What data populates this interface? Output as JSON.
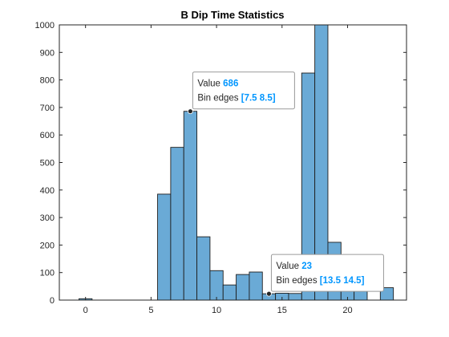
{
  "chart_data": {
    "type": "bar",
    "title": "B Dip Time Statistics",
    "xlabel": "",
    "ylabel": "",
    "xlim": [
      -2,
      24.5
    ],
    "ylim": [
      0,
      1000
    ],
    "x_ticks": [
      0,
      5,
      10,
      15,
      20
    ],
    "y_ticks": [
      0,
      100,
      200,
      300,
      400,
      500,
      600,
      700,
      800,
      900,
      1000
    ],
    "grid": false,
    "bar_color": "#6aaad6",
    "edge_color": "#1f1f1f",
    "bins": [
      {
        "left": -0.5,
        "right": 0.5,
        "value": 5
      },
      {
        "left": 5.5,
        "right": 6.5,
        "value": 385
      },
      {
        "left": 6.5,
        "right": 7.5,
        "value": 555
      },
      {
        "left": 7.5,
        "right": 8.5,
        "value": 686
      },
      {
        "left": 8.5,
        "right": 9.5,
        "value": 230
      },
      {
        "left": 9.5,
        "right": 10.5,
        "value": 107
      },
      {
        "left": 10.5,
        "right": 11.5,
        "value": 55
      },
      {
        "left": 11.5,
        "right": 12.5,
        "value": 93
      },
      {
        "left": 12.5,
        "right": 13.5,
        "value": 102
      },
      {
        "left": 13.5,
        "right": 14.5,
        "value": 23
      },
      {
        "left": 14.5,
        "right": 15.5,
        "value": 25
      },
      {
        "left": 15.5,
        "right": 16.5,
        "value": 24
      },
      {
        "left": 16.5,
        "right": 17.5,
        "value": 825
      },
      {
        "left": 17.5,
        "right": 18.5,
        "value": 1000
      },
      {
        "left": 18.5,
        "right": 19.5,
        "value": 210
      },
      {
        "left": 19.5,
        "right": 20.5,
        "value": 80
      },
      {
        "left": 20.5,
        "right": 21.5,
        "value": 40
      },
      {
        "left": 22.5,
        "right": 23.5,
        "value": 45
      }
    ],
    "datatips": [
      {
        "value_label": "Value",
        "value": "686",
        "edges_label": "Bin edges",
        "edges": "[7.5 8.5]",
        "x": 8,
        "y": 686
      },
      {
        "value_label": "Value",
        "value": "23",
        "edges_label": "Bin edges",
        "edges": "[13.5 14.5]",
        "x": 14,
        "y": 23
      }
    ]
  }
}
